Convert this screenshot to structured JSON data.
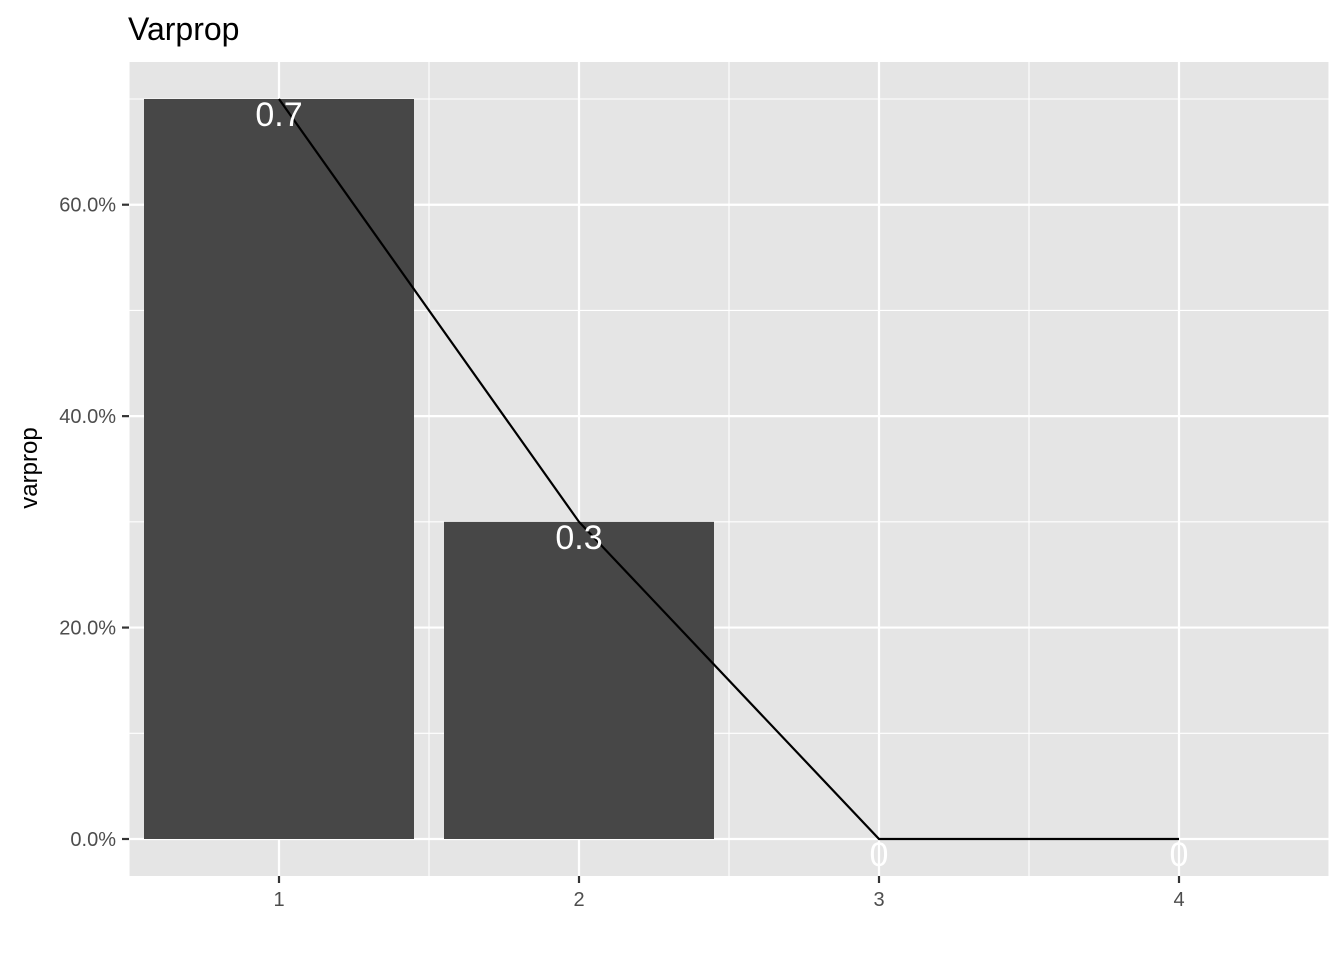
{
  "chart_data": {
    "type": "bar",
    "title": "Varprop",
    "xlabel": "",
    "ylabel": "varprop",
    "categories": [
      "1",
      "2",
      "3",
      "4"
    ],
    "x": [
      1,
      2,
      3,
      4
    ],
    "values": [
      0.7,
      0.3,
      0,
      0
    ],
    "data_labels": [
      "0.7",
      "0.3",
      "0",
      "0"
    ],
    "line_values": [
      0.7,
      0.3,
      0,
      0
    ],
    "overlay": "line connecting values",
    "xlim": [
      0.5,
      4.5
    ],
    "ylim": [
      -0.035,
      0.735
    ],
    "y_ticks": [
      0,
      0.2,
      0.4,
      0.6
    ],
    "y_tick_labels": [
      "0.0%",
      "20.0%",
      "40.0%",
      "60.0%"
    ],
    "y_format": "percent",
    "grid": true,
    "legend": "none",
    "colors": {
      "panel_background": "#e5e5e5",
      "grid": "#ffffff",
      "bar_fill": "#474747",
      "line": "#000000",
      "data_label": "#ffffff",
      "tick_text": "#4d4d4d",
      "title_text": "#000000"
    }
  }
}
